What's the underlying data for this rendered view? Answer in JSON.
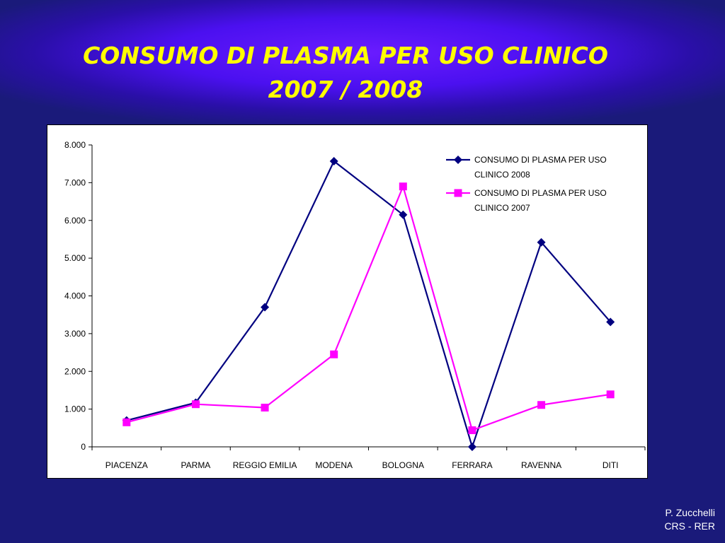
{
  "slide": {
    "title_line1": "CONSUMO DI PLASMA PER USO CLINICO",
    "title_line2": "2007 / 2008",
    "credit_line1": "P. Zucchelli",
    "credit_line2": "CRS - RER"
  },
  "colors": {
    "series_2008": "#000080",
    "series_2007": "#ff00ff"
  },
  "chart_data": {
    "type": "line",
    "categories": [
      "PIACENZA",
      "PARMA",
      "REGGIO EMILIA",
      "MODENA",
      "BOLOGNA",
      "FERRARA",
      "RAVENNA",
      "DITI"
    ],
    "ylim": [
      0,
      8000
    ],
    "yticks": [
      0,
      1000,
      2000,
      3000,
      4000,
      5000,
      6000,
      7000,
      8000
    ],
    "ytick_labels": [
      "0",
      "1.000",
      "2.000",
      "3.000",
      "4.000",
      "5.000",
      "6.000",
      "7.000",
      "8.000"
    ],
    "grid": false,
    "legend_position": "top-right",
    "series": [
      {
        "name_line1": "CONSUMO DI PLASMA PER USO",
        "name_line2": "CLINICO 2008",
        "marker": "diamond",
        "values": [
          700,
          1170,
          3700,
          7570,
          6150,
          0,
          5420,
          3310
        ]
      },
      {
        "name_line1": "CONSUMO DI PLASMA PER USO",
        "name_line2": "CLINICO 2007",
        "marker": "square",
        "values": [
          650,
          1130,
          1040,
          2450,
          6900,
          440,
          1110,
          1390
        ]
      }
    ]
  }
}
